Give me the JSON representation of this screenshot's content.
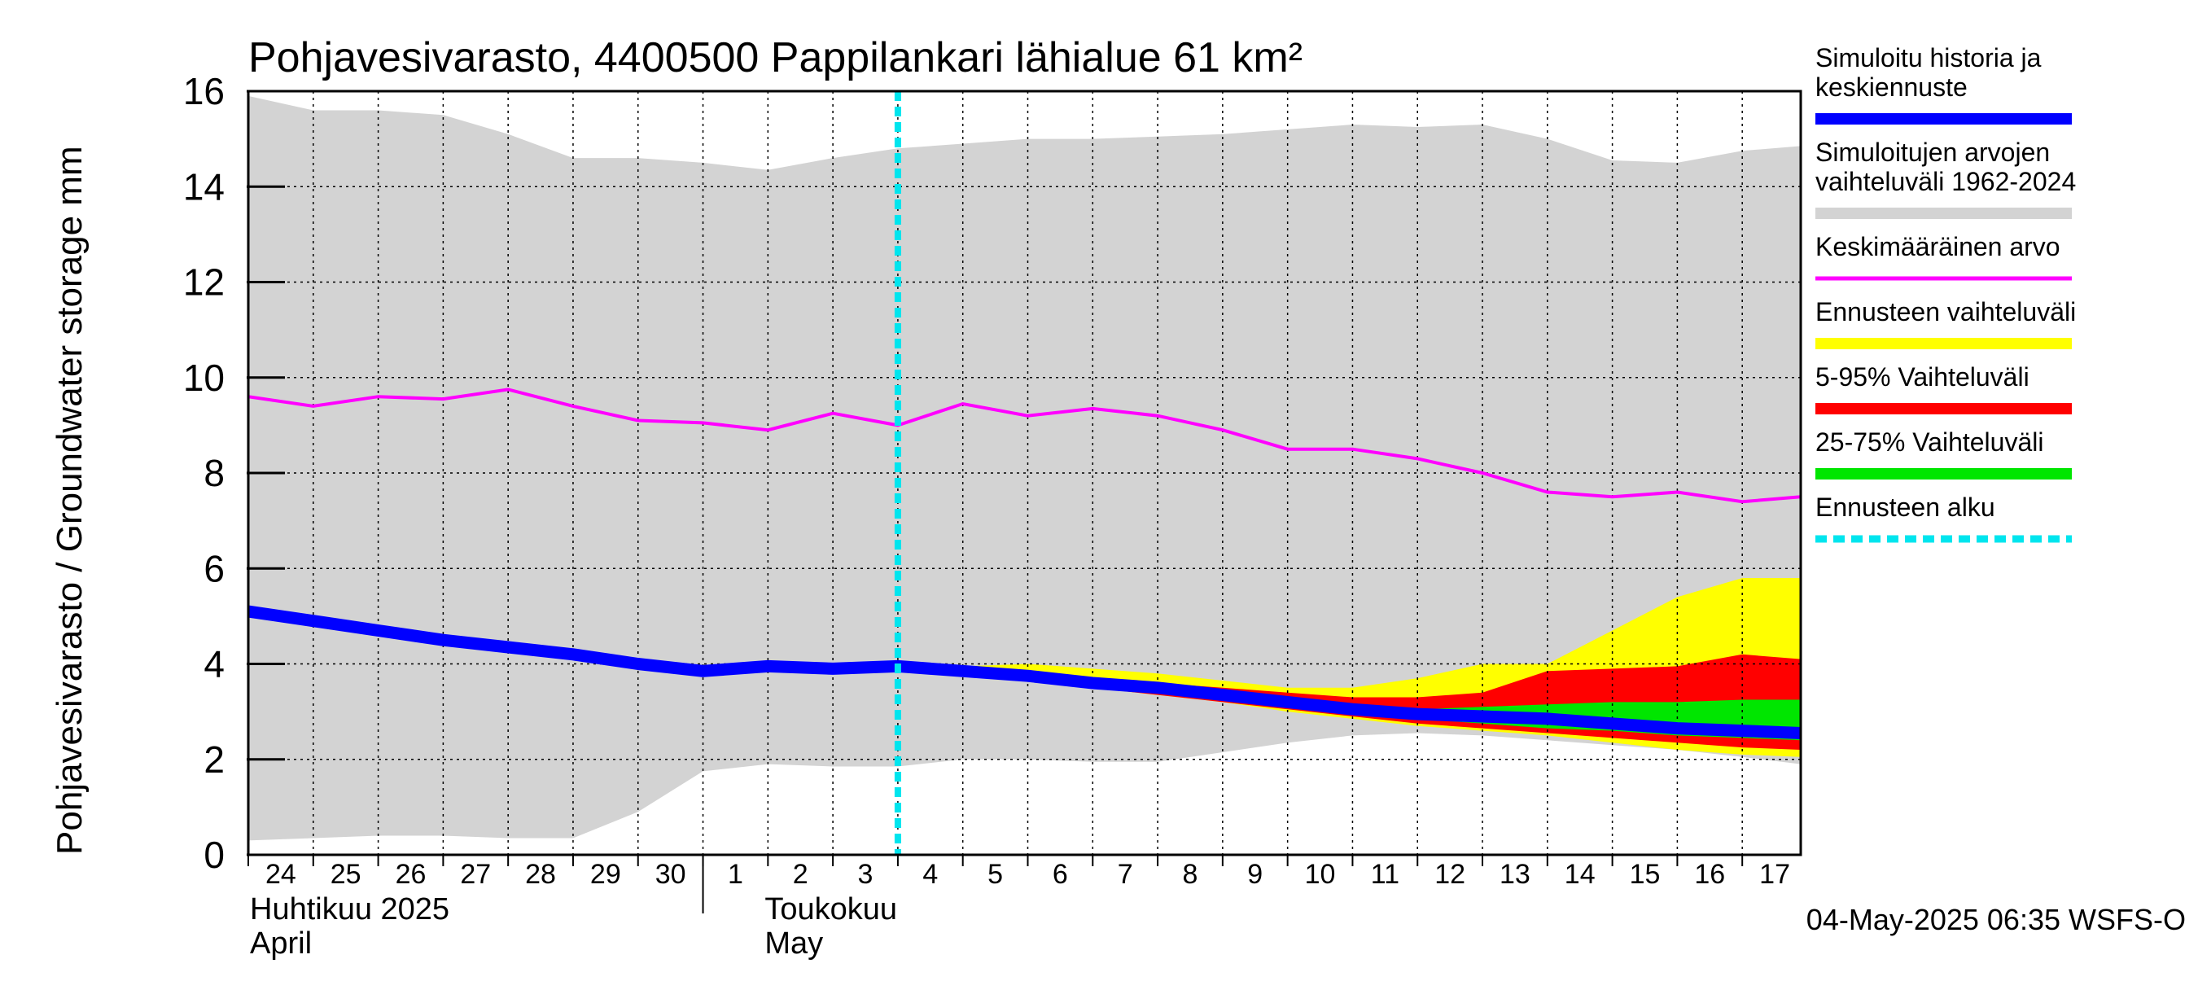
{
  "chart_data": {
    "type": "area",
    "title": "Pohjavesivarasto, 4400500 Pappilankari lähialue 61 km²",
    "ylabel": "Pohjavesivarasto / Groundwater storage   mm",
    "ylim": [
      0,
      16
    ],
    "yticks": [
      0,
      2,
      4,
      6,
      8,
      10,
      12,
      14,
      16
    ],
    "grid": true,
    "legend_position": "right",
    "x_day_labels": [
      "24",
      "25",
      "26",
      "27",
      "28",
      "29",
      "30",
      "1",
      "2",
      "3",
      "4",
      "5",
      "6",
      "7",
      "8",
      "9",
      "10",
      "11",
      "12",
      "13",
      "14",
      "15",
      "16",
      "17"
    ],
    "x_month_labels": [
      {
        "line1": "Huhtikuu  2025",
        "line2": "April"
      },
      {
        "line1": "Toukokuu",
        "line2": "May"
      }
    ],
    "forecast_start_day": 10,
    "footer": "04-May-2025 06:35 WSFS-O",
    "colors": {
      "hist_range": "#d3d3d3",
      "mean": "#ff00ff",
      "forecast_range": "#ffff00",
      "band_5_95": "#ff0000",
      "band_25_75": "#00e600",
      "simulation": "#0000ff",
      "forecast_start": "#00e5ee",
      "grid": "#000000"
    },
    "legend": [
      {
        "key": "simulation",
        "lines": [
          "Simuloitu historia ja",
          "keskiennuste"
        ],
        "style": "thick"
      },
      {
        "key": "hist_range",
        "lines": [
          "Simuloitujen arvojen",
          "vaihteluväli 1962-2024"
        ],
        "style": "band"
      },
      {
        "key": "mean",
        "lines": [
          "Keskimääräinen arvo"
        ],
        "style": "thin"
      },
      {
        "key": "forecast_range",
        "lines": [
          "Ennusteen vaihteluväli"
        ],
        "style": "band"
      },
      {
        "key": "band_5_95",
        "lines": [
          "5-95% Vaihteluväli"
        ],
        "style": "band"
      },
      {
        "key": "band_25_75",
        "lines": [
          "25-75% Vaihteluväli"
        ],
        "style": "band"
      },
      {
        "key": "forecast_start",
        "lines": [
          "Ennusteen alku"
        ],
        "style": "dotted"
      }
    ],
    "series": {
      "hist_max": [
        [
          0,
          15.9
        ],
        [
          1,
          15.6
        ],
        [
          2,
          15.6
        ],
        [
          3,
          15.5
        ],
        [
          4,
          15.1
        ],
        [
          5,
          14.6
        ],
        [
          6,
          14.6
        ],
        [
          7,
          14.5
        ],
        [
          8,
          14.35
        ],
        [
          9,
          14.6
        ],
        [
          10,
          14.8
        ],
        [
          11,
          14.9
        ],
        [
          12,
          15.0
        ],
        [
          13,
          15.0
        ],
        [
          14,
          15.05
        ],
        [
          15,
          15.1
        ],
        [
          16,
          15.2
        ],
        [
          17,
          15.3
        ],
        [
          18,
          15.25
        ],
        [
          19,
          15.3
        ],
        [
          20,
          15.0
        ],
        [
          21,
          14.55
        ],
        [
          22,
          14.5
        ],
        [
          23,
          14.75
        ],
        [
          23.9,
          14.85
        ]
      ],
      "hist_min": [
        [
          0,
          0.3
        ],
        [
          1,
          0.35
        ],
        [
          2,
          0.4
        ],
        [
          3,
          0.4
        ],
        [
          4,
          0.35
        ],
        [
          5,
          0.35
        ],
        [
          6,
          0.9
        ],
        [
          7,
          1.75
        ],
        [
          8,
          1.9
        ],
        [
          9,
          1.85
        ],
        [
          10,
          1.85
        ],
        [
          11,
          2.0
        ],
        [
          12,
          2.0
        ],
        [
          13,
          1.95
        ],
        [
          14,
          1.95
        ],
        [
          15,
          2.15
        ],
        [
          16,
          2.35
        ],
        [
          17,
          2.5
        ],
        [
          18,
          2.55
        ],
        [
          19,
          2.5
        ],
        [
          20,
          2.4
        ],
        [
          21,
          2.3
        ],
        [
          22,
          2.2
        ],
        [
          23,
          2.05
        ],
        [
          23.9,
          1.9
        ]
      ],
      "mean": [
        [
          0,
          9.6
        ],
        [
          1,
          9.4
        ],
        [
          2,
          9.6
        ],
        [
          3,
          9.55
        ],
        [
          4,
          9.75
        ],
        [
          5,
          9.4
        ],
        [
          6,
          9.1
        ],
        [
          7,
          9.05
        ],
        [
          8,
          8.9
        ],
        [
          9,
          9.25
        ],
        [
          10,
          9.0
        ],
        [
          11,
          9.45
        ],
        [
          12,
          9.2
        ],
        [
          13,
          9.35
        ],
        [
          14,
          9.2
        ],
        [
          15,
          8.9
        ],
        [
          16,
          8.5
        ],
        [
          17,
          8.5
        ],
        [
          18,
          8.3
        ],
        [
          19,
          8.0
        ],
        [
          20,
          7.6
        ],
        [
          21,
          7.5
        ],
        [
          22,
          7.6
        ],
        [
          23,
          7.4
        ],
        [
          23.9,
          7.5
        ]
      ],
      "forecast_max": [
        [
          10,
          3.95
        ],
        [
          11,
          3.95
        ],
        [
          12,
          4.0
        ],
        [
          13,
          3.9
        ],
        [
          14,
          3.8
        ],
        [
          15,
          3.65
        ],
        [
          16,
          3.5
        ],
        [
          17,
          3.5
        ],
        [
          18,
          3.7
        ],
        [
          19,
          4.0
        ],
        [
          20,
          4.0
        ],
        [
          21,
          4.7
        ],
        [
          22,
          5.4
        ],
        [
          23,
          5.8
        ],
        [
          23.9,
          5.8
        ]
      ],
      "forecast_min": [
        [
          10,
          3.9
        ],
        [
          11,
          3.8
        ],
        [
          12,
          3.65
        ],
        [
          13,
          3.5
        ],
        [
          14,
          3.35
        ],
        [
          15,
          3.2
        ],
        [
          16,
          3.0
        ],
        [
          17,
          2.85
        ],
        [
          18,
          2.7
        ],
        [
          19,
          2.6
        ],
        [
          20,
          2.5
        ],
        [
          21,
          2.35
        ],
        [
          22,
          2.2
        ],
        [
          23,
          2.1
        ],
        [
          23.9,
          2.05
        ]
      ],
      "p95": [
        [
          10,
          3.9
        ],
        [
          11,
          3.85
        ],
        [
          12,
          3.8
        ],
        [
          13,
          3.7
        ],
        [
          14,
          3.6
        ],
        [
          15,
          3.5
        ],
        [
          16,
          3.4
        ],
        [
          17,
          3.3
        ],
        [
          18,
          3.3
        ],
        [
          19,
          3.4
        ],
        [
          20,
          3.85
        ],
        [
          21,
          3.9
        ],
        [
          22,
          3.95
        ],
        [
          23,
          4.2
        ],
        [
          23.9,
          4.1
        ]
      ],
      "p5": [
        [
          10,
          3.9
        ],
        [
          11,
          3.8
        ],
        [
          12,
          3.65
        ],
        [
          13,
          3.5
        ],
        [
          14,
          3.35
        ],
        [
          15,
          3.2
        ],
        [
          16,
          3.05
        ],
        [
          17,
          2.9
        ],
        [
          18,
          2.75
        ],
        [
          19,
          2.65
        ],
        [
          20,
          2.55
        ],
        [
          21,
          2.45
        ],
        [
          22,
          2.35
        ],
        [
          23,
          2.25
        ],
        [
          23.9,
          2.2
        ]
      ],
      "p75": [
        [
          10,
          3.9
        ],
        [
          11,
          3.85
        ],
        [
          12,
          3.75
        ],
        [
          13,
          3.6
        ],
        [
          14,
          3.5
        ],
        [
          15,
          3.35
        ],
        [
          16,
          3.2
        ],
        [
          17,
          3.1
        ],
        [
          18,
          3.05
        ],
        [
          19,
          3.1
        ],
        [
          20,
          3.15
        ],
        [
          21,
          3.2
        ],
        [
          22,
          3.2
        ],
        [
          23,
          3.25
        ],
        [
          23.9,
          3.25
        ]
      ],
      "p25": [
        [
          10,
          3.9
        ],
        [
          11,
          3.8
        ],
        [
          12,
          3.7
        ],
        [
          13,
          3.55
        ],
        [
          14,
          3.4
        ],
        [
          15,
          3.25
        ],
        [
          16,
          3.1
        ],
        [
          17,
          2.95
        ],
        [
          18,
          2.85
        ],
        [
          19,
          2.75
        ],
        [
          20,
          2.65
        ],
        [
          21,
          2.6
        ],
        [
          22,
          2.5
        ],
        [
          23,
          2.45
        ],
        [
          23.9,
          2.4
        ]
      ],
      "simulation": [
        [
          0,
          5.1
        ],
        [
          1,
          4.9
        ],
        [
          2,
          4.7
        ],
        [
          3,
          4.5
        ],
        [
          4,
          4.35
        ],
        [
          5,
          4.2
        ],
        [
          6,
          4.0
        ],
        [
          7,
          3.85
        ],
        [
          8,
          3.95
        ],
        [
          9,
          3.9
        ],
        [
          10,
          3.95
        ],
        [
          11,
          3.85
        ],
        [
          12,
          3.75
        ],
        [
          13,
          3.6
        ],
        [
          14,
          3.5
        ],
        [
          15,
          3.35
        ],
        [
          16,
          3.2
        ],
        [
          17,
          3.05
        ],
        [
          18,
          2.95
        ],
        [
          19,
          2.9
        ],
        [
          20,
          2.85
        ],
        [
          21,
          2.75
        ],
        [
          22,
          2.65
        ],
        [
          23,
          2.6
        ],
        [
          23.9,
          2.55
        ]
      ]
    }
  }
}
